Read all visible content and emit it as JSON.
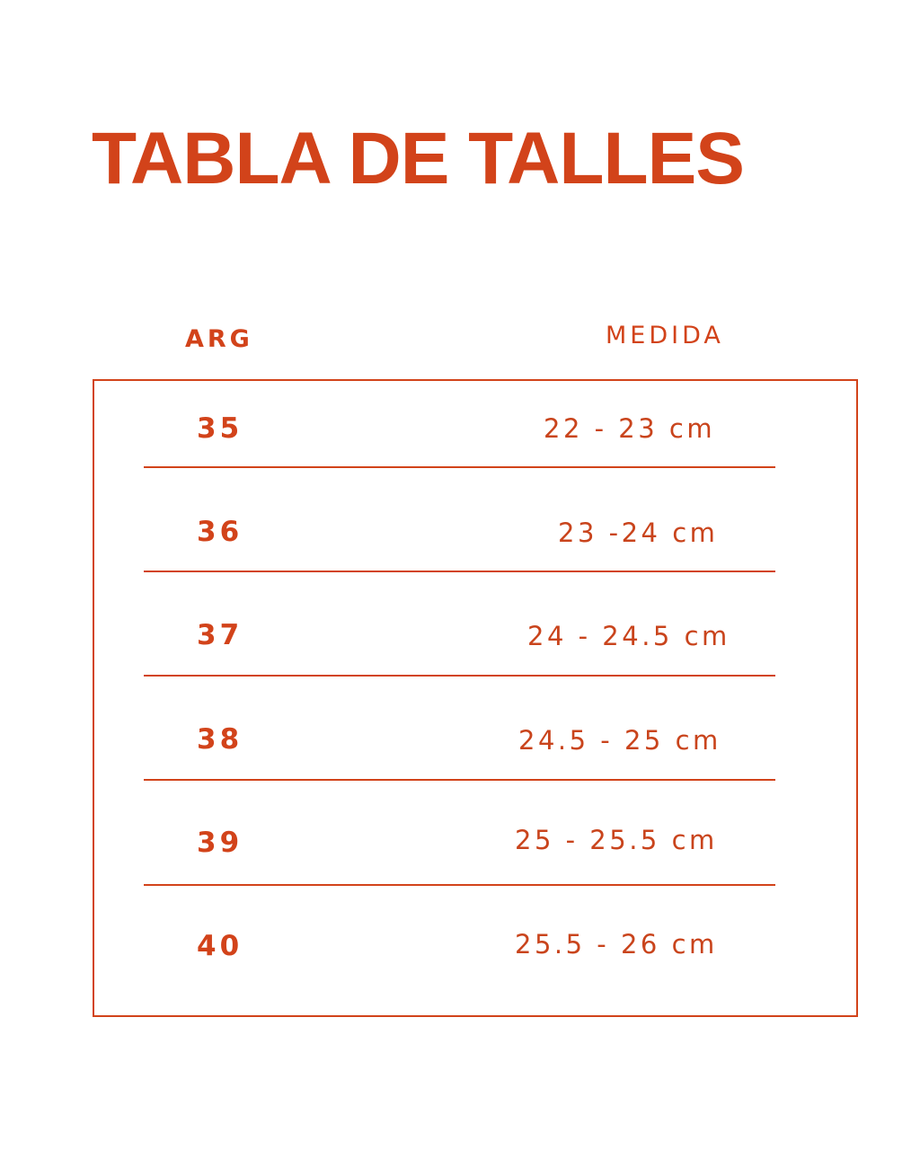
{
  "title": "TABLA DE TALLES",
  "headers": {
    "arg": "ARG",
    "medida": "MEDIDA"
  },
  "rows": [
    {
      "arg": "35",
      "medida": "22 - 23 cm"
    },
    {
      "arg": "36",
      "medida": "23 -24 cm"
    },
    {
      "arg": "37",
      "medida": "24 - 24.5 cm"
    },
    {
      "arg": "38",
      "medida": "24.5 - 25 cm"
    },
    {
      "arg": "39",
      "medida": "25 - 25.5 cm"
    },
    {
      "arg": "40",
      "medida": "25.5 - 26 cm"
    }
  ],
  "colors": {
    "accent": "#d2431a",
    "background": "#ffffff"
  }
}
